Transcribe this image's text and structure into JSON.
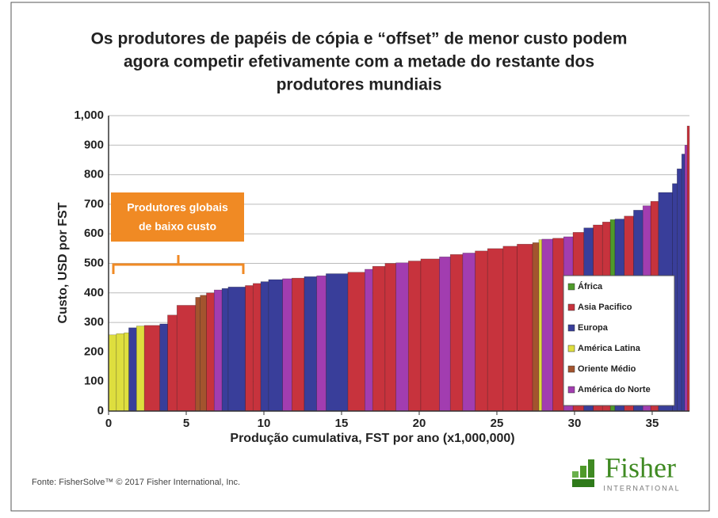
{
  "chart_data": {
    "type": "cost_curve",
    "title": [
      "Os produtores de papéis de cópia e “offset” de menor custo podem",
      "agora competir efetivamente com a metade do restante dos",
      "produtores mundiais"
    ],
    "ylabel": "Custo, USD por FST",
    "xlabel": "Produção cumulativa, FST por ano (x1,000,000)",
    "annotation": [
      "Produtores globais",
      "de baixo custo"
    ],
    "source": "Fonte: FisherSolve™ © 2017 Fisher International, Inc.",
    "logo": {
      "name": "Fisher",
      "sub": "INTERNATIONAL"
    },
    "xlim": [
      0,
      37.4
    ],
    "xticks": [
      0,
      5,
      10,
      15,
      20,
      25,
      30,
      35
    ],
    "ylim": [
      0,
      1000
    ],
    "yticks": [
      0,
      100,
      200,
      300,
      400,
      500,
      600,
      700,
      800,
      900,
      {
        "value": 1000,
        "label": "1,000"
      }
    ],
    "grid": true,
    "legend": "right",
    "series": [
      {
        "name": "África",
        "color": "#4f9a2a",
        "x0": [
          32.3
        ],
        "x1": [
          32.6
        ],
        "values": [
          648
        ]
      },
      {
        "name": "Asia Pacifico",
        "color": "#c7333d",
        "x0": [
          2.3,
          3.8,
          4.4,
          6.3,
          8.8,
          9.3,
          11.8,
          15.4,
          17,
          17.8,
          19.3,
          20.1,
          22,
          23.6,
          24.4,
          25.4,
          26.3,
          28.6,
          29.9,
          31.2,
          31.8,
          33.2,
          34.9,
          37.25
        ],
        "x1": [
          3.3,
          4.4,
          5.6,
          6.8,
          9.3,
          9.8,
          12.6,
          16.5,
          17.8,
          18.5,
          20.1,
          21.3,
          22.8,
          24.4,
          25.4,
          26.3,
          27.3,
          29.3,
          30.6,
          31.8,
          32.3,
          33.8,
          35.4,
          37.4
        ],
        "values": [
          290,
          325,
          358,
          400,
          425,
          432,
          450,
          470,
          490,
          500,
          508,
          515,
          530,
          542,
          550,
          558,
          565,
          585,
          605,
          630,
          640,
          660,
          710,
          965
        ]
      },
      {
        "name": "Europa",
        "color": "#393e9a",
        "x0": [
          1.3,
          3.3,
          7.3,
          7.7,
          9.8,
          10.3,
          12.6,
          14,
          30.6,
          32.6,
          33.8,
          35.4,
          36.3,
          36.6,
          36.9
        ],
        "x1": [
          1.8,
          3.8,
          7.7,
          8.8,
          10.3,
          11.2,
          13.4,
          15.4,
          31.2,
          33.2,
          34.4,
          36.3,
          36.6,
          36.9,
          37.1
        ],
        "values": [
          282,
          295,
          415,
          420,
          438,
          445,
          455,
          465,
          620,
          650,
          680,
          740,
          770,
          820,
          870
        ]
      },
      {
        "name": "América Latina",
        "color": "#dede3e",
        "x0": [
          0,
          0.5,
          1,
          1.8,
          27.7
        ],
        "x1": [
          0.5,
          1,
          1.3,
          2.3,
          27.9
        ],
        "values": [
          258,
          262,
          265,
          288,
          580
        ]
      },
      {
        "name": "Oriente Médio",
        "color": "#a3542e",
        "x0": [
          5.6,
          5.9,
          27.3
        ],
        "x1": [
          5.9,
          6.3,
          27.7
        ],
        "values": [
          385,
          392,
          570
        ]
      },
      {
        "name": "América do Norte",
        "color": "#a23db0",
        "x0": [
          6.8,
          11.2,
          13.4,
          16.5,
          18.5,
          21.3,
          22.8,
          27.9,
          29.3,
          34.4,
          37.1
        ],
        "x1": [
          7.3,
          11.8,
          14,
          17,
          19.3,
          22,
          23.6,
          28.6,
          29.9,
          34.9,
          37.25
        ],
        "values": [
          410,
          448,
          458,
          480,
          502,
          522,
          535,
          582,
          590,
          695,
          900
        ]
      }
    ]
  }
}
